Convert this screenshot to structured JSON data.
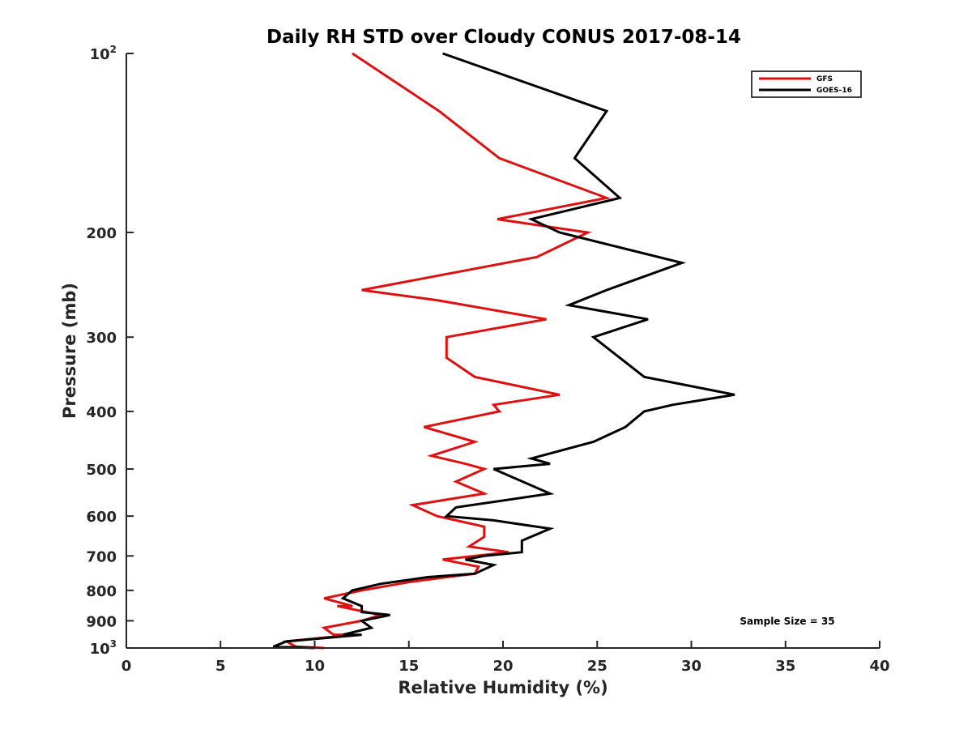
{
  "chart_data": {
    "type": "line",
    "title": "Daily RH STD over Cloudy CONUS 2017-08-14",
    "xlabel": "Relative Humidity (%)",
    "ylabel": "Pressure (mb)",
    "xlim": [
      0,
      40
    ],
    "ylim": [
      100,
      1000
    ],
    "y_scale": "log",
    "y_reversed": true,
    "x_ticks": [
      "0",
      "5",
      "10",
      "15",
      "20",
      "25",
      "30",
      "35",
      "40"
    ],
    "y_ticks": [
      {
        "value": 100,
        "base": "10",
        "exp": "2"
      },
      {
        "value": 200,
        "label": "200"
      },
      {
        "value": 300,
        "label": "300"
      },
      {
        "value": 400,
        "label": "400"
      },
      {
        "value": 500,
        "label": "500"
      },
      {
        "value": 600,
        "label": "600"
      },
      {
        "value": 700,
        "label": "700"
      },
      {
        "value": 800,
        "label": "800"
      },
      {
        "value": 900,
        "label": "900"
      },
      {
        "value": 1000,
        "base": "10",
        "exp": "3"
      }
    ],
    "legend_position": "top-right",
    "annotation": "Sample Size = 35",
    "series": [
      {
        "name": "GFS",
        "color": "#dd1111",
        "points": [
          [
            12.0,
            100
          ],
          [
            16.6,
            125
          ],
          [
            19.8,
            150
          ],
          [
            25.5,
            175
          ],
          [
            19.7,
            190
          ],
          [
            24.5,
            200
          ],
          [
            21.8,
            220
          ],
          [
            12.5,
            250
          ],
          [
            16.5,
            260
          ],
          [
            22.3,
            280
          ],
          [
            17.0,
            300
          ],
          [
            17.0,
            325
          ],
          [
            18.5,
            350
          ],
          [
            23.0,
            375
          ],
          [
            19.5,
            390
          ],
          [
            19.8,
            400
          ],
          [
            15.8,
            425
          ],
          [
            18.5,
            450
          ],
          [
            16.2,
            475
          ],
          [
            18.0,
            490
          ],
          [
            19.0,
            500
          ],
          [
            17.5,
            525
          ],
          [
            19.0,
            550
          ],
          [
            15.2,
            575
          ],
          [
            16.5,
            600
          ],
          [
            19.0,
            625
          ],
          [
            19.0,
            650
          ],
          [
            18.2,
            675
          ],
          [
            20.3,
            690
          ],
          [
            16.8,
            710
          ],
          [
            18.7,
            730
          ],
          [
            18.5,
            750
          ],
          [
            17.0,
            760
          ],
          [
            15.0,
            775
          ],
          [
            12.5,
            800
          ],
          [
            10.5,
            825
          ],
          [
            12.0,
            850
          ],
          [
            11.2,
            850
          ],
          [
            13.5,
            880
          ],
          [
            12.5,
            900
          ],
          [
            10.5,
            925
          ],
          [
            11.0,
            950
          ],
          [
            12.0,
            950
          ],
          [
            8.5,
            975
          ],
          [
            9.0,
            995
          ],
          [
            10.5,
            1000
          ]
        ]
      },
      {
        "name": "GOES-16",
        "color": "#000000",
        "points": [
          [
            16.8,
            100
          ],
          [
            25.5,
            125
          ],
          [
            23.8,
            150
          ],
          [
            26.2,
            175
          ],
          [
            21.5,
            190
          ],
          [
            23.0,
            200
          ],
          [
            29.5,
            225
          ],
          [
            25.5,
            250
          ],
          [
            23.5,
            265
          ],
          [
            27.7,
            280
          ],
          [
            24.8,
            300
          ],
          [
            27.5,
            350
          ],
          [
            32.3,
            375
          ],
          [
            29.0,
            390
          ],
          [
            27.5,
            400
          ],
          [
            26.5,
            425
          ],
          [
            24.8,
            450
          ],
          [
            21.5,
            480
          ],
          [
            22.5,
            490
          ],
          [
            19.5,
            500
          ],
          [
            22.5,
            550
          ],
          [
            17.5,
            580
          ],
          [
            17.0,
            600
          ],
          [
            19.5,
            610
          ],
          [
            22.5,
            630
          ],
          [
            21.0,
            660
          ],
          [
            21.0,
            690
          ],
          [
            19.0,
            700
          ],
          [
            18.0,
            710
          ],
          [
            19.5,
            725
          ],
          [
            18.5,
            750
          ],
          [
            16.0,
            760
          ],
          [
            13.5,
            780
          ],
          [
            12.0,
            800
          ],
          [
            11.5,
            825
          ],
          [
            12.5,
            850
          ],
          [
            12.5,
            870
          ],
          [
            14.0,
            880
          ],
          [
            12.5,
            900
          ],
          [
            13.0,
            925
          ],
          [
            11.5,
            950
          ],
          [
            12.5,
            950
          ],
          [
            8.5,
            975
          ],
          [
            7.8,
            995
          ],
          [
            10.0,
            1000
          ]
        ]
      }
    ]
  }
}
